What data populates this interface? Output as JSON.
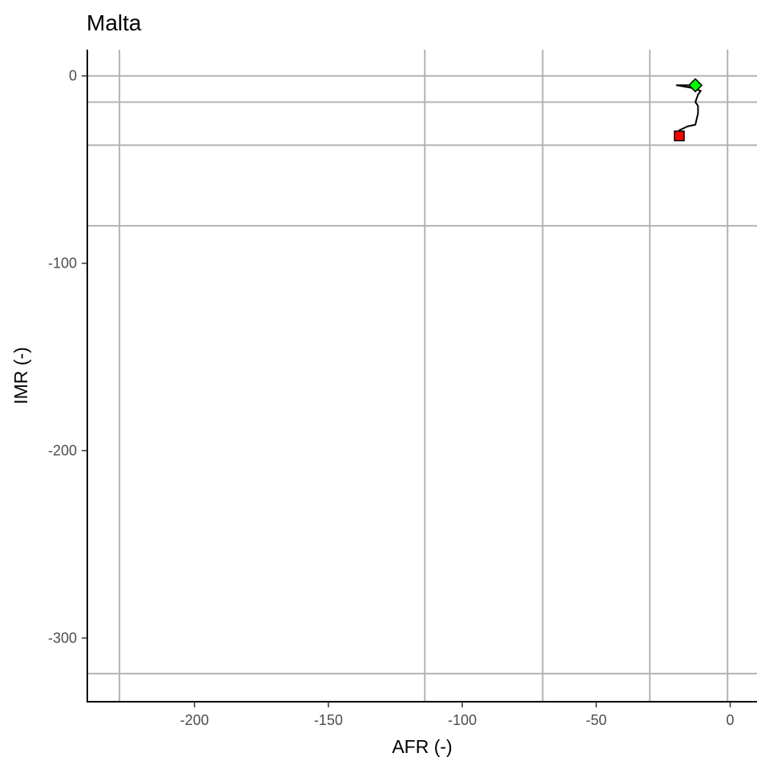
{
  "chart_data": {
    "type": "line",
    "title": "Malta",
    "xlabel": "AFR (-)",
    "ylabel": "IMR (-)",
    "xlim": [
      -240,
      10
    ],
    "ylim": [
      -334,
      14
    ],
    "x_ticks": [
      -200,
      -150,
      -100,
      -50,
      0
    ],
    "y_ticks": [
      0,
      -100,
      -200,
      -300
    ],
    "grid": false,
    "reference_lines": {
      "vertical": [
        -228,
        -114,
        -70,
        -30,
        -1
      ],
      "horizontal": [
        0,
        -14,
        -37,
        -80,
        -319
      ],
      "color": "#b3b3b3"
    },
    "series": [
      {
        "x": [
          -19,
          -19,
          -16,
          -13,
          -12,
          -12,
          -13,
          -12,
          -11,
          -13,
          -12,
          -20,
          -13
        ],
        "y": [
          -32,
          -29,
          -27,
          -26,
          -20,
          -16,
          -14,
          -10,
          -8,
          -7,
          -7,
          -5,
          -5
        ],
        "color": "#000000"
      }
    ],
    "markers": [
      {
        "shape": "square",
        "x": -19,
        "y": -32,
        "color": "#ff0000"
      },
      {
        "shape": "diamond",
        "x": -13,
        "y": -5,
        "color": "#00ff00"
      }
    ]
  }
}
